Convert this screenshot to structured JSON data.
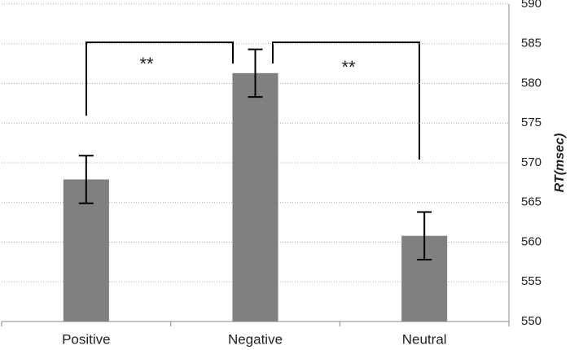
{
  "chart_data": {
    "type": "bar",
    "y_label": "RT(msec)",
    "categories": [
      "Positive",
      "Negative",
      "Neutral"
    ],
    "values": [
      567.9,
      581.3,
      560.8
    ],
    "errors": [
      3.0,
      3.0,
      3.0
    ],
    "color": "#808080",
    "ylim": [
      550,
      590
    ],
    "yticks": [
      550,
      555,
      560,
      565,
      570,
      575,
      580,
      585,
      590
    ],
    "grid": true,
    "annotations": [
      "**",
      "**"
    ]
  }
}
